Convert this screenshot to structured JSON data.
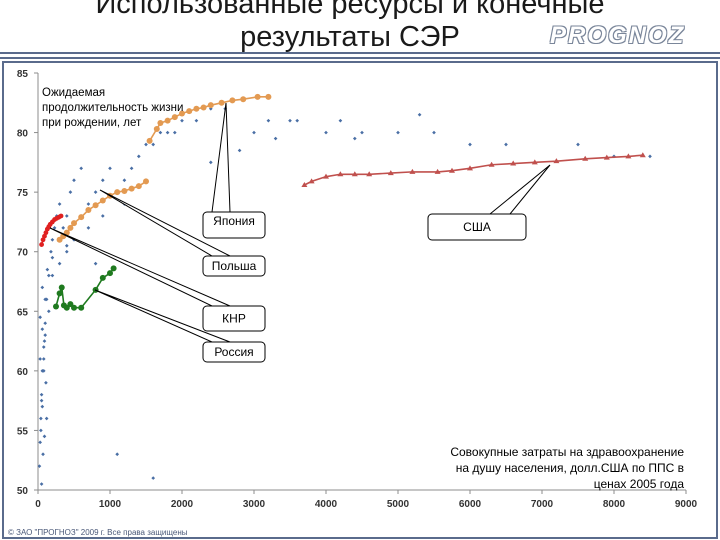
{
  "page": {
    "title_line1": "Использованные ресурсы и конечные",
    "title_line2": "результаты СЭР",
    "logo": "PROGNOZ",
    "footer": "© ЗАО \"ПРОГНОЗ\" 2009 г. Все права защищены"
  },
  "colors": {
    "frame": "#5a6b8c",
    "scatter": "#4a6fa5",
    "japan": "#e39a52",
    "usa": "#c0504d",
    "china": "#e02020",
    "russia": "#1f7a1f",
    "poland": "#e39a52"
  },
  "chart_data": {
    "type": "scatter",
    "title": "",
    "ylabel": "Ожидаемая продолжительность жизни при рождении, лет",
    "xlabel": "Совокупные затраты на здравоохранение на душу населения, долл.США по ППС в ценах 2005 года",
    "xlim": [
      0,
      9000
    ],
    "ylim": [
      50,
      85
    ],
    "x_ticks": [
      0,
      1000,
      2000,
      3000,
      4000,
      5000,
      6000,
      7000,
      8000,
      9000
    ],
    "y_ticks": [
      50,
      55,
      60,
      65,
      70,
      75,
      80,
      85
    ],
    "grid": false,
    "callouts": [
      {
        "label": "Япония",
        "series": "Япония"
      },
      {
        "label": "США",
        "series": "США"
      },
      {
        "label": "Польша",
        "series": "Польша"
      },
      {
        "label": "КНР",
        "series": "КНР"
      },
      {
        "label": "Россия",
        "series": "Россия"
      }
    ],
    "series": [
      {
        "name": "Япония",
        "color": "#e39a52",
        "line": true,
        "x": [
          1550,
          1650,
          1700,
          1800,
          1900,
          2000,
          2100,
          2200,
          2300,
          2400,
          2550,
          2700,
          2850,
          3050,
          3200
        ],
        "y": [
          79.3,
          80.3,
          80.8,
          81.0,
          81.3,
          81.6,
          81.8,
          82.0,
          82.1,
          82.3,
          82.5,
          82.7,
          82.8,
          83.0,
          83.0
        ]
      },
      {
        "name": "США",
        "color": "#c0504d",
        "line": true,
        "x": [
          3700,
          3800,
          4000,
          4200,
          4400,
          4600,
          4900,
          5200,
          5550,
          5750,
          6000,
          6300,
          6600,
          6900,
          7200,
          7600,
          7900,
          8200,
          8400
        ],
        "y": [
          75.6,
          75.9,
          76.3,
          76.5,
          76.5,
          76.5,
          76.6,
          76.7,
          76.7,
          76.8,
          77.0,
          77.3,
          77.4,
          77.5,
          77.6,
          77.8,
          77.9,
          78.0,
          78.1
        ]
      },
      {
        "name": "КНР",
        "color": "#e02020",
        "line": true,
        "x": [
          50,
          70,
          90,
          110,
          130,
          150,
          170,
          200,
          230,
          260,
          290,
          320
        ],
        "y": [
          70.6,
          71.0,
          71.3,
          71.6,
          71.9,
          72.1,
          72.3,
          72.5,
          72.7,
          72.8,
          72.9,
          73.0
        ]
      },
      {
        "name": "Польша",
        "color": "#e39a52",
        "line": true,
        "x": [
          300,
          350,
          400,
          450,
          500,
          600,
          700,
          800,
          900,
          1000,
          1100,
          1200,
          1300,
          1400,
          1500
        ],
        "y": [
          71.0,
          71.3,
          71.6,
          72.0,
          72.4,
          72.9,
          73.5,
          73.9,
          74.3,
          74.7,
          75.0,
          75.1,
          75.3,
          75.5,
          75.9
        ]
      },
      {
        "name": "Россия",
        "color": "#1f7a1f",
        "line": true,
        "x": [
          250,
          300,
          330,
          360,
          400,
          450,
          500,
          600,
          800,
          900,
          1000,
          1050
        ],
        "y": [
          65.4,
          66.5,
          67.0,
          65.5,
          65.3,
          65.6,
          65.3,
          65.3,
          66.8,
          67.8,
          68.2,
          68.6
        ]
      },
      {
        "name": "",
        "color": "#4a6fa5",
        "line": false,
        "x": [
          20,
          30,
          40,
          50,
          60,
          80,
          100,
          120,
          150,
          180,
          200,
          230,
          260,
          300,
          350,
          400,
          450,
          500,
          600,
          700,
          800,
          900,
          1000,
          1100,
          1200,
          1300,
          1400,
          1500,
          1600,
          1700,
          1800,
          1900,
          2000,
          2200,
          2400,
          2600,
          3000,
          3200,
          3500,
          4000,
          4200,
          4500,
          5000,
          5500,
          6000,
          6500,
          7500,
          8000,
          8500,
          40,
          60,
          80,
          100,
          150,
          200,
          300,
          400,
          500,
          700,
          900,
          1200,
          1500,
          50,
          70,
          90,
          110,
          30,
          60,
          100,
          130,
          200,
          400,
          1100,
          800,
          1600,
          2400,
          2800,
          3300,
          3600,
          4400,
          5300,
          50,
          80,
          30,
          60,
          90,
          120
        ],
        "y": [
          52,
          54,
          56,
          58,
          60,
          62,
          64,
          66,
          68,
          70,
          71,
          72,
          73,
          74,
          72,
          73,
          75,
          76,
          77,
          74,
          75,
          76,
          77,
          75,
          76,
          77,
          78,
          79,
          79,
          80,
          80,
          80,
          81,
          81,
          82,
          82,
          80,
          81,
          81,
          80,
          81,
          80,
          80,
          80,
          79,
          79,
          79,
          78,
          78,
          55,
          57,
          61,
          63,
          65,
          68,
          69,
          70,
          71,
          72,
          73,
          74,
          76,
          50.5,
          53,
          54.5,
          59,
          61,
          63.5,
          66,
          68.5,
          69.5,
          70.5,
          53,
          69,
          51,
          77.5,
          78.5,
          79.5,
          81,
          79.5,
          81.5,
          57.5,
          60,
          64.5,
          67,
          62.5,
          56
        ]
      }
    ]
  }
}
